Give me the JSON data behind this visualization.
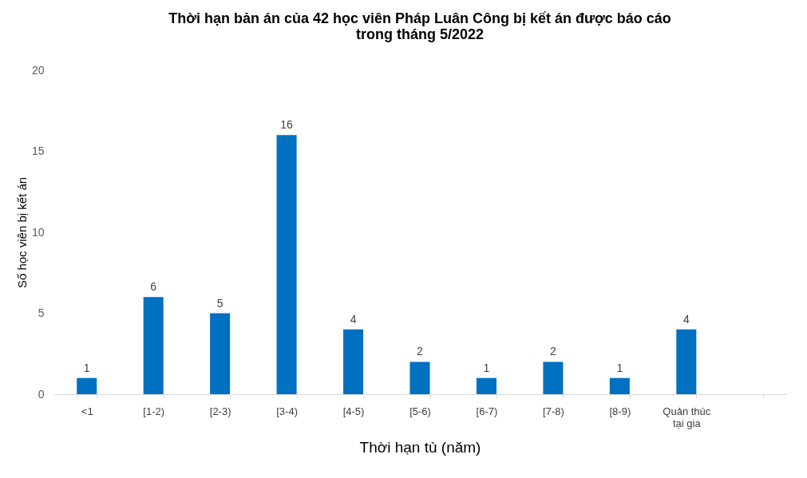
{
  "chart_data": {
    "type": "bar",
    "title": "Thời hạn bản án của 42 học viên Pháp Luân Công bị kết án được báo cáo\ntrong tháng 5/2022",
    "xlabel": "Thời hạn tù (năm)",
    "ylabel": "Số học viên bị kết án",
    "categories": [
      "<1",
      "[1-2)",
      "[2-3)",
      "[3-4)",
      "[4-5)",
      "[5-6)",
      "[6-7)",
      "[7-8)",
      "[8-9)",
      "Quản thúc\ntại gia",
      null
    ],
    "values": [
      1,
      6,
      5,
      16,
      4,
      2,
      1,
      2,
      1,
      4,
      null
    ],
    "color": "#0070c0",
    "ylim": [
      0,
      20
    ],
    "yticks": [
      0,
      5,
      10,
      15,
      20
    ],
    "grid": false,
    "data_labels": true
  }
}
